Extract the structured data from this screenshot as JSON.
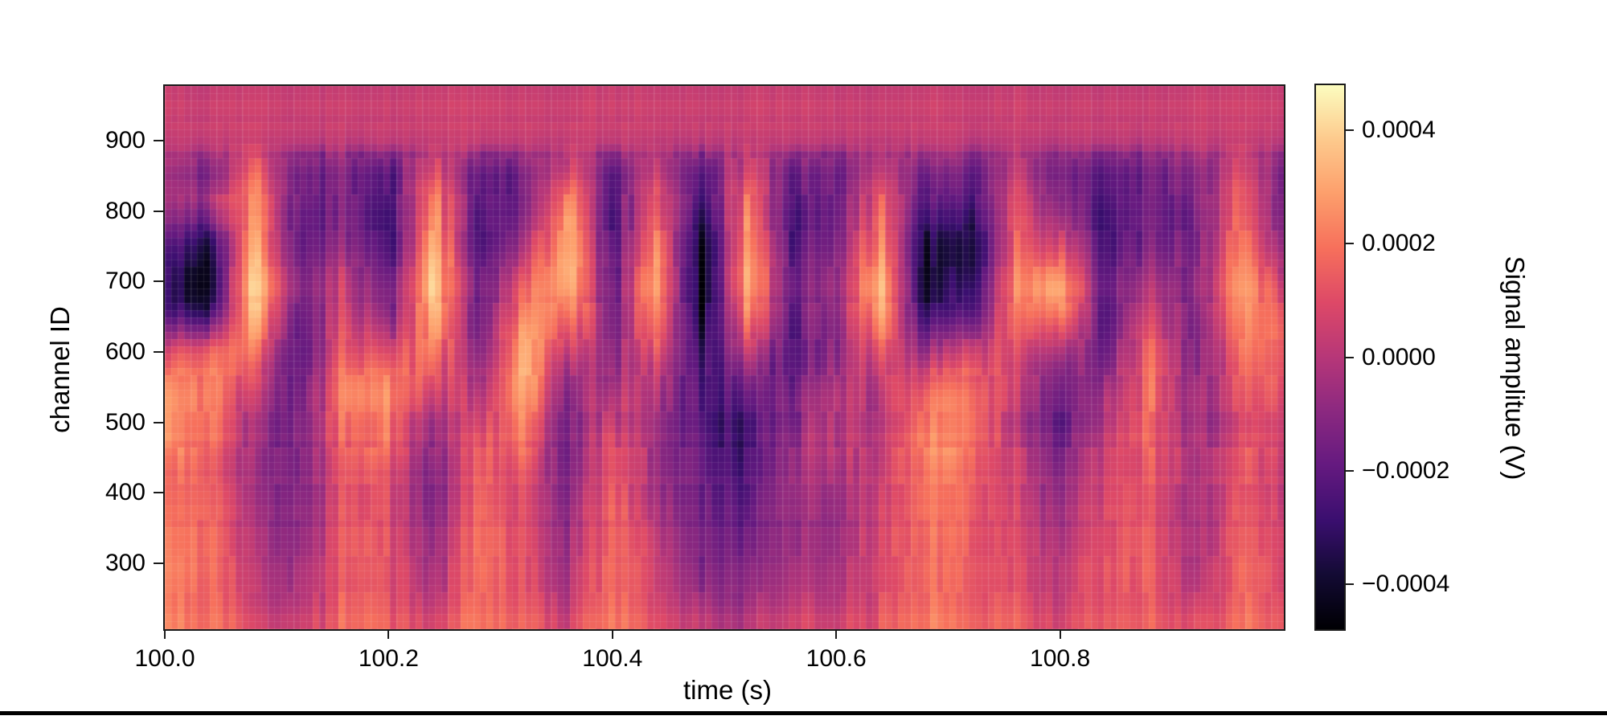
{
  "figure": {
    "background": "#ffffff",
    "bottom_rule_color": "#000000",
    "text_color": "#000000"
  },
  "chart_data": {
    "type": "heatmap",
    "title": "",
    "xlabel": "time (s)",
    "ylabel": "channel ID",
    "colormap": "magma",
    "grid_visible": false,
    "x_range": [
      100.0,
      101.0
    ],
    "y_range": [
      206,
      978
    ],
    "x_ticks": [
      {
        "value": 100.0,
        "label": "100.0"
      },
      {
        "value": 100.2,
        "label": "100.2"
      },
      {
        "value": 100.4,
        "label": "100.4"
      },
      {
        "value": 100.6,
        "label": "100.6"
      },
      {
        "value": 100.8,
        "label": "100.8"
      }
    ],
    "y_ticks": [
      {
        "value": 900,
        "label": "900"
      },
      {
        "value": 800,
        "label": "800"
      },
      {
        "value": 700,
        "label": "700"
      },
      {
        "value": 600,
        "label": "600"
      },
      {
        "value": 500,
        "label": "500"
      },
      {
        "value": 400,
        "label": "400"
      },
      {
        "value": 300,
        "label": "300"
      }
    ],
    "color_range_V": [
      -0.00048,
      0.00048
    ],
    "colorbar": {
      "label": "Signal amplitue (V)",
      "side": "right",
      "ticks": [
        {
          "value": 0.0004,
          "label": "0.0004"
        },
        {
          "value": 0.0002,
          "label": "0.0002"
        },
        {
          "value": 0.0,
          "label": "0.0000"
        },
        {
          "value": -0.0002,
          "label": "−0.0002"
        },
        {
          "value": -0.0004,
          "label": "−0.0004"
        }
      ]
    },
    "grid": {
      "description": "Coarse estimate of the heatmap field; values in volts = number * value_scale",
      "value_unit": "V",
      "value_scale": 0.0001,
      "times_s": [
        100.0,
        100.04,
        100.08,
        100.12,
        100.16,
        100.2,
        100.24,
        100.28,
        100.32,
        100.36,
        100.4,
        100.44,
        100.48,
        100.52,
        100.56,
        100.6,
        100.64,
        100.68,
        100.72,
        100.76,
        100.8,
        100.84,
        100.88,
        100.92,
        100.96,
        101.0
      ],
      "channels": [
        975,
        940,
        900,
        880,
        850,
        820,
        790,
        760,
        720,
        690,
        660,
        630,
        600,
        570,
        540,
        500,
        460,
        420,
        370,
        300,
        220
      ],
      "columns": [
        [
          0.4,
          0.4,
          0.3,
          -0.3,
          -0.8,
          -0.8,
          -1.2,
          -2.2,
          -3.2,
          -3.6,
          -3.2,
          -1.5,
          0.5,
          1.5,
          2.0,
          2.2,
          1.8,
          1.5,
          1.6,
          1.8,
          2.0
        ],
        [
          0.4,
          0.45,
          0.3,
          -0.5,
          -1.0,
          -0.5,
          -1.5,
          -3.0,
          -4.0,
          -4.2,
          -3.0,
          -0.5,
          1.8,
          2.5,
          2.6,
          2.4,
          2.0,
          1.8,
          1.9,
          2.1,
          2.2
        ],
        [
          0.45,
          0.5,
          0.35,
          0.5,
          1.5,
          1.8,
          2.2,
          2.8,
          3.4,
          3.8,
          3.2,
          2.4,
          1.6,
          0.6,
          -0.4,
          -1.0,
          -1.2,
          -1.0,
          -0.8,
          -0.5,
          0.5
        ],
        [
          0.4,
          0.4,
          0.2,
          -1.0,
          -1.8,
          -2.0,
          -2.2,
          -2.0,
          -1.8,
          -1.6,
          -1.8,
          -2.0,
          -2.2,
          -2.0,
          -1.8,
          -1.5,
          -1.6,
          -1.4,
          -1.2,
          -0.8,
          0.3
        ],
        [
          0.45,
          0.5,
          0.3,
          -0.5,
          -1.0,
          -1.2,
          -1.0,
          -0.5,
          0.2,
          0.5,
          0.8,
          1.2,
          1.8,
          2.4,
          2.6,
          2.2,
          1.6,
          1.4,
          1.5,
          1.7,
          1.9
        ],
        [
          0.4,
          0.45,
          0.25,
          -1.2,
          -2.2,
          -2.6,
          -2.8,
          -2.6,
          -2.2,
          -1.8,
          -1.2,
          -0.2,
          1.0,
          2.0,
          2.4,
          2.2,
          1.8,
          1.2,
          1.0,
          1.2,
          1.6
        ],
        [
          0.45,
          0.5,
          0.35,
          0.3,
          1.2,
          2.0,
          2.6,
          3.0,
          3.6,
          3.8,
          3.4,
          2.8,
          2.2,
          1.4,
          0.4,
          -0.6,
          -1.2,
          -1.4,
          -1.2,
          -0.8,
          0.4
        ],
        [
          0.4,
          0.45,
          0.2,
          -1.4,
          -2.4,
          -2.8,
          -3.0,
          -2.8,
          -2.4,
          -2.2,
          -2.4,
          -2.2,
          -1.8,
          -1.2,
          -0.6,
          0.2,
          0.8,
          1.2,
          1.4,
          1.6,
          1.8
        ],
        [
          0.45,
          0.5,
          0.3,
          -0.8,
          -1.6,
          -1.8,
          -1.4,
          -0.6,
          0.4,
          1.2,
          2.0,
          2.8,
          3.2,
          3.4,
          3.0,
          2.4,
          1.6,
          1.0,
          0.8,
          1.0,
          1.5
        ],
        [
          0.45,
          0.5,
          0.35,
          0.4,
          1.4,
          2.4,
          3.2,
          3.6,
          3.8,
          3.4,
          2.6,
          1.6,
          0.6,
          -0.4,
          -1.0,
          -1.4,
          -1.6,
          -1.2,
          -0.8,
          -0.4,
          0.6
        ],
        [
          0.4,
          0.4,
          0.15,
          -1.5,
          -2.6,
          -3.0,
          -3.2,
          -3.0,
          -2.6,
          -2.2,
          -2.0,
          -1.8,
          -1.6,
          -1.2,
          -0.6,
          0.2,
          0.8,
          1.0,
          1.2,
          1.4,
          1.7
        ],
        [
          0.45,
          0.5,
          0.3,
          0.2,
          0.8,
          1.4,
          2.0,
          2.6,
          3.0,
          3.2,
          2.8,
          2.2,
          1.4,
          0.6,
          0.0,
          -0.4,
          -0.6,
          -0.4,
          0.0,
          0.6,
          1.2
        ],
        [
          0.4,
          0.45,
          0.2,
          -1.0,
          -2.0,
          -2.6,
          -3.2,
          -3.8,
          -4.2,
          -4.4,
          -4.0,
          -3.4,
          -2.8,
          -2.4,
          -2.2,
          -2.0,
          -1.8,
          -1.6,
          -1.5,
          -1.2,
          0.2
        ],
        [
          0.45,
          0.5,
          0.3,
          0.3,
          1.0,
          1.6,
          2.2,
          2.8,
          3.2,
          3.0,
          2.4,
          1.4,
          0.2,
          -1.0,
          -2.0,
          -2.6,
          -2.8,
          -2.4,
          -2.0,
          -1.4,
          -0.2
        ],
        [
          0.4,
          0.45,
          0.2,
          -1.2,
          -2.0,
          -2.4,
          -2.6,
          -2.4,
          -2.0,
          -1.8,
          -2.0,
          -2.2,
          -2.4,
          -2.2,
          -1.8,
          -1.2,
          -0.8,
          -0.6,
          -0.8,
          -0.6,
          0.5
        ],
        [
          0.4,
          0.45,
          0.25,
          -0.8,
          -1.4,
          -1.6,
          -1.4,
          -1.0,
          -0.6,
          -0.4,
          -0.6,
          -0.8,
          -0.6,
          -0.2,
          0.2,
          0.4,
          0.2,
          -0.2,
          -0.6,
          -0.4,
          0.6
        ],
        [
          0.45,
          0.5,
          0.35,
          0.4,
          1.2,
          1.8,
          2.4,
          3.0,
          3.6,
          4.0,
          3.6,
          2.8,
          2.0,
          1.2,
          0.6,
          0.4,
          0.6,
          0.8,
          1.0,
          1.2,
          1.6
        ],
        [
          0.4,
          0.45,
          0.2,
          -1.0,
          -2.0,
          -2.8,
          -3.4,
          -4.0,
          -4.4,
          -4.4,
          -3.8,
          -2.6,
          -1.2,
          0.2,
          1.2,
          1.8,
          2.0,
          1.8,
          1.6,
          1.4,
          1.8
        ],
        [
          0.4,
          0.45,
          0.25,
          -0.6,
          -1.4,
          -2.0,
          -2.6,
          -3.0,
          -3.2,
          -2.8,
          -1.8,
          -0.4,
          1.0,
          2.0,
          2.6,
          2.8,
          2.4,
          2.0,
          1.8,
          1.6,
          2.0
        ],
        [
          0.45,
          0.5,
          0.3,
          0.0,
          0.4,
          0.8,
          1.2,
          1.6,
          2.0,
          2.2,
          2.0,
          1.6,
          1.2,
          0.8,
          0.4,
          0.2,
          0.4,
          0.6,
          0.8,
          1.0,
          1.4
        ],
        [
          0.45,
          0.5,
          0.3,
          -0.4,
          -0.8,
          -0.6,
          0.2,
          1.4,
          2.8,
          3.8,
          3.2,
          1.8,
          0.4,
          -0.6,
          -1.2,
          -1.4,
          -1.0,
          -0.6,
          -0.2,
          0.4,
          1.0
        ],
        [
          0.4,
          0.45,
          0.2,
          -1.2,
          -2.0,
          -2.4,
          -2.6,
          -2.4,
          -2.2,
          -2.0,
          -2.2,
          -2.0,
          -1.6,
          -1.0,
          -0.4,
          0.2,
          0.6,
          0.8,
          1.0,
          1.2,
          1.5
        ],
        [
          0.45,
          0.5,
          0.3,
          -0.4,
          -1.0,
          -1.2,
          -1.0,
          -0.6,
          0.0,
          0.6,
          1.2,
          1.8,
          2.2,
          2.4,
          2.4,
          2.2,
          2.0,
          1.8,
          1.6,
          1.8,
          2.0
        ],
        [
          0.4,
          0.45,
          0.25,
          -0.8,
          -1.4,
          -1.8,
          -2.0,
          -1.8,
          -1.6,
          -1.4,
          -1.6,
          -1.8,
          -1.6,
          -1.4,
          -1.2,
          -1.0,
          -0.8,
          -0.6,
          -0.8,
          -0.6,
          0.6
        ],
        [
          0.45,
          0.5,
          0.3,
          0.2,
          0.8,
          1.2,
          1.6,
          2.0,
          2.4,
          2.6,
          2.4,
          2.0,
          1.6,
          1.2,
          0.8,
          0.6,
          0.8,
          1.0,
          1.2,
          1.4,
          1.7
        ],
        [
          0.4,
          0.45,
          0.25,
          -0.6,
          -1.2,
          -1.4,
          -1.2,
          -0.8,
          0.0,
          0.8,
          1.4,
          1.8,
          2.0,
          1.8,
          1.4,
          1.0,
          0.8,
          0.6,
          0.8,
          1.0,
          1.4
        ]
      ]
    }
  }
}
